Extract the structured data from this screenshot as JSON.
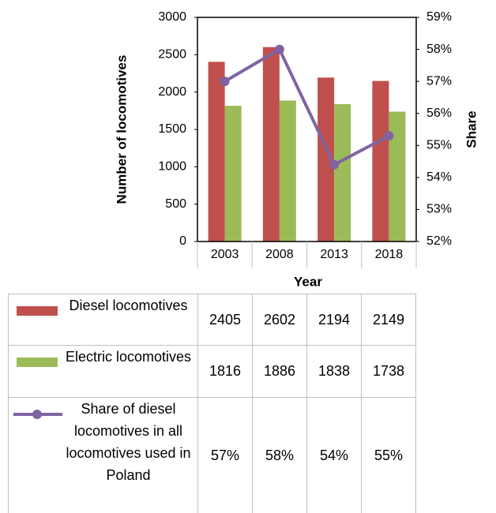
{
  "chart_data": {
    "type": "bar",
    "x_label": "Year",
    "y_label": "Number of locomotives",
    "y2_label": "Share",
    "categories": [
      "2003",
      "2008",
      "2013",
      "2018"
    ],
    "series": [
      {
        "name": "Diesel locomotives",
        "color": "#c0504d",
        "type": "bar",
        "values": [
          2405,
          2602,
          2194,
          2149
        ]
      },
      {
        "name": "Electric locomotives",
        "color": "#9bbb59",
        "type": "bar",
        "values": [
          1816,
          1886,
          1838,
          1738
        ]
      },
      {
        "name": "Share of diesel locomotives in all locomotives used in Poland",
        "color": "#8064a2",
        "type": "line",
        "axis": "y2",
        "values": [
          57,
          58,
          54.4,
          55.3
        ],
        "value_labels": [
          "57%",
          "58%",
          "54%",
          "55%"
        ]
      }
    ],
    "ylim": [
      0,
      3000
    ],
    "yticks": [
      0,
      500,
      1000,
      1500,
      2000,
      2500,
      3000
    ],
    "y2lim": [
      52,
      59
    ],
    "y2ticks": [
      {
        "value": 52,
        "label": "52%"
      },
      {
        "value": 53,
        "label": "53%"
      },
      {
        "value": 54,
        "label": "54%"
      },
      {
        "value": 55,
        "label": "55%"
      },
      {
        "value": 56,
        "label": "56%"
      },
      {
        "value": 57,
        "label": "57%"
      },
      {
        "value": 58,
        "label": "58%"
      },
      {
        "value": 59,
        "label": "59%"
      }
    ],
    "data_table": true
  }
}
